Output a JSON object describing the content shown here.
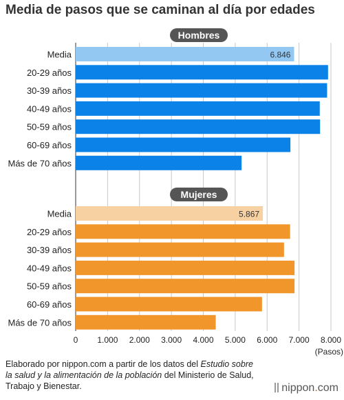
{
  "title": "Media de pasos que se caminan al día por edades",
  "source": {
    "prefix": "Elaborado por nippon.com a partir de los datos del ",
    "italic": "Estudio sobre la salud y la alimentación de la población",
    "suffix": " del Ministerio de Salud, Trabajo y Bienestar."
  },
  "brand": {
    "name": "nippon",
    "dot": ".",
    "domain": "com"
  },
  "chart_data": {
    "type": "bar",
    "orientation": "horizontal",
    "title": "Media de pasos que se caminan al día por edades",
    "xlabel": "(Pasos)",
    "xlim": [
      0,
      8000
    ],
    "xticks": [
      0,
      1000,
      2000,
      3000,
      4000,
      5000,
      6000,
      7000,
      8000
    ],
    "xtick_labels": [
      "0",
      "1.000",
      "2.000",
      "3.000",
      "4.000",
      "5.000",
      "6.000",
      "7.000",
      "8.000"
    ],
    "grid": true,
    "categories": [
      "Media",
      "20-29 años",
      "30-39 años",
      "40-49 años",
      "50-59 años",
      "60-69 años",
      "Más de 70 años"
    ],
    "panels": [
      {
        "name": "Hombres",
        "values": [
          6846,
          7910,
          7880,
          7650,
          7660,
          6730,
          5200
        ],
        "data_labels": [
          "6.846",
          "",
          "",
          "",
          "",
          "",
          ""
        ],
        "colors": [
          "#93c8f2",
          "#0a82e8",
          "#0a82e8",
          "#0a82e8",
          "#0a82e8",
          "#0a82e8",
          "#0a82e8"
        ]
      },
      {
        "name": "Mujeres",
        "values": [
          5867,
          6720,
          6530,
          6860,
          6860,
          5840,
          4390
        ],
        "data_labels": [
          "5.867",
          "",
          "",
          "",
          "",
          "",
          ""
        ],
        "colors": [
          "#f8d1a3",
          "#f1962b",
          "#f1962b",
          "#f1962b",
          "#f1962b",
          "#f1962b",
          "#f1962b"
        ]
      }
    ]
  }
}
